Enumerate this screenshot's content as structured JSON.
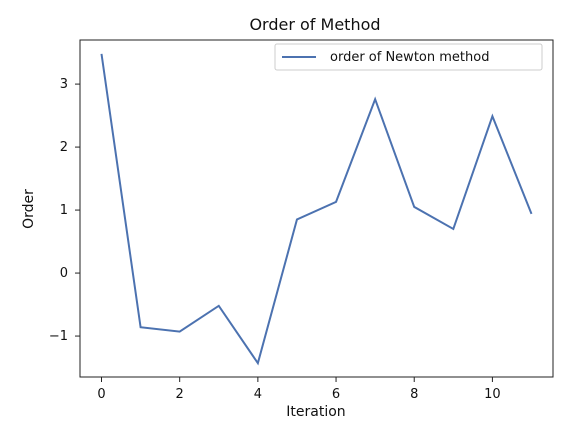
{
  "chart_data": {
    "type": "line",
    "title": "Order of Method",
    "xlabel": "Iteration",
    "ylabel": "Order",
    "x": [
      0,
      1,
      2,
      3,
      4,
      5,
      6,
      7,
      8,
      9,
      10,
      11
    ],
    "series": [
      {
        "name": "order of Newton method",
        "color": "#4c72b0",
        "values": [
          3.48,
          -0.86,
          -0.93,
          -0.52,
          -1.43,
          0.85,
          1.13,
          2.76,
          1.05,
          0.7,
          2.49,
          0.94
        ]
      }
    ],
    "xlim": [
      -0.55,
      11.55
    ],
    "ylim": [
      -1.65,
      3.7
    ],
    "xticks": [
      0,
      2,
      4,
      6,
      8,
      10
    ],
    "yticks": [
      -1,
      0,
      1,
      2,
      3
    ],
    "xtick_labels": [
      "0",
      "2",
      "4",
      "6",
      "8",
      "10"
    ],
    "ytick_labels": [
      "−1",
      "0",
      "1",
      "2",
      "3"
    ],
    "grid": false,
    "legend_position": "top-right"
  }
}
